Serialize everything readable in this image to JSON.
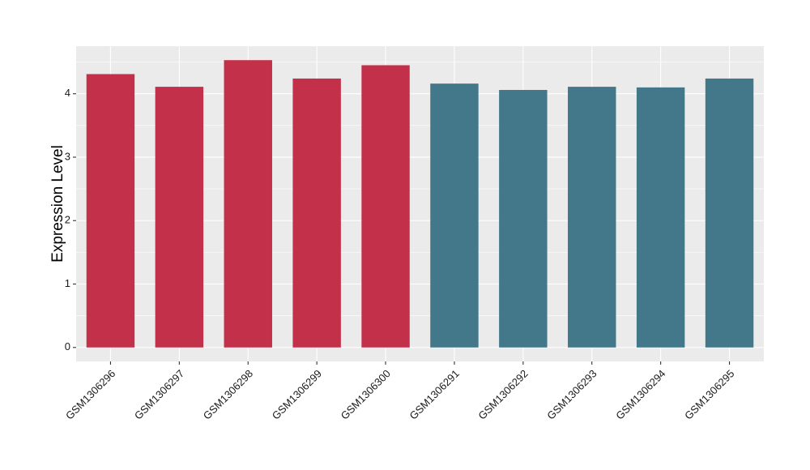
{
  "chart_data": {
    "type": "bar",
    "title": "",
    "xlabel": "",
    "ylabel": "Expression Level",
    "ylim": [
      -0.22,
      4.75
    ],
    "yticks": [
      0,
      1,
      2,
      3,
      4
    ],
    "grid": true,
    "background": "#EBEBEB",
    "gridline_color": "#FFFFFF",
    "categories": [
      "GSM1306296",
      "GSM1306297",
      "GSM1306298",
      "GSM1306299",
      "GSM1306300",
      "GSM1306291",
      "GSM1306292",
      "GSM1306293",
      "GSM1306294",
      "GSM1306295"
    ],
    "values": [
      4.31,
      4.11,
      4.53,
      4.24,
      4.45,
      4.16,
      4.06,
      4.11,
      4.1,
      4.24
    ],
    "bar_colors": [
      "#C3304A",
      "#C3304A",
      "#C3304A",
      "#C3304A",
      "#C3304A",
      "#427889",
      "#427889",
      "#427889",
      "#427889",
      "#427889"
    ]
  }
}
